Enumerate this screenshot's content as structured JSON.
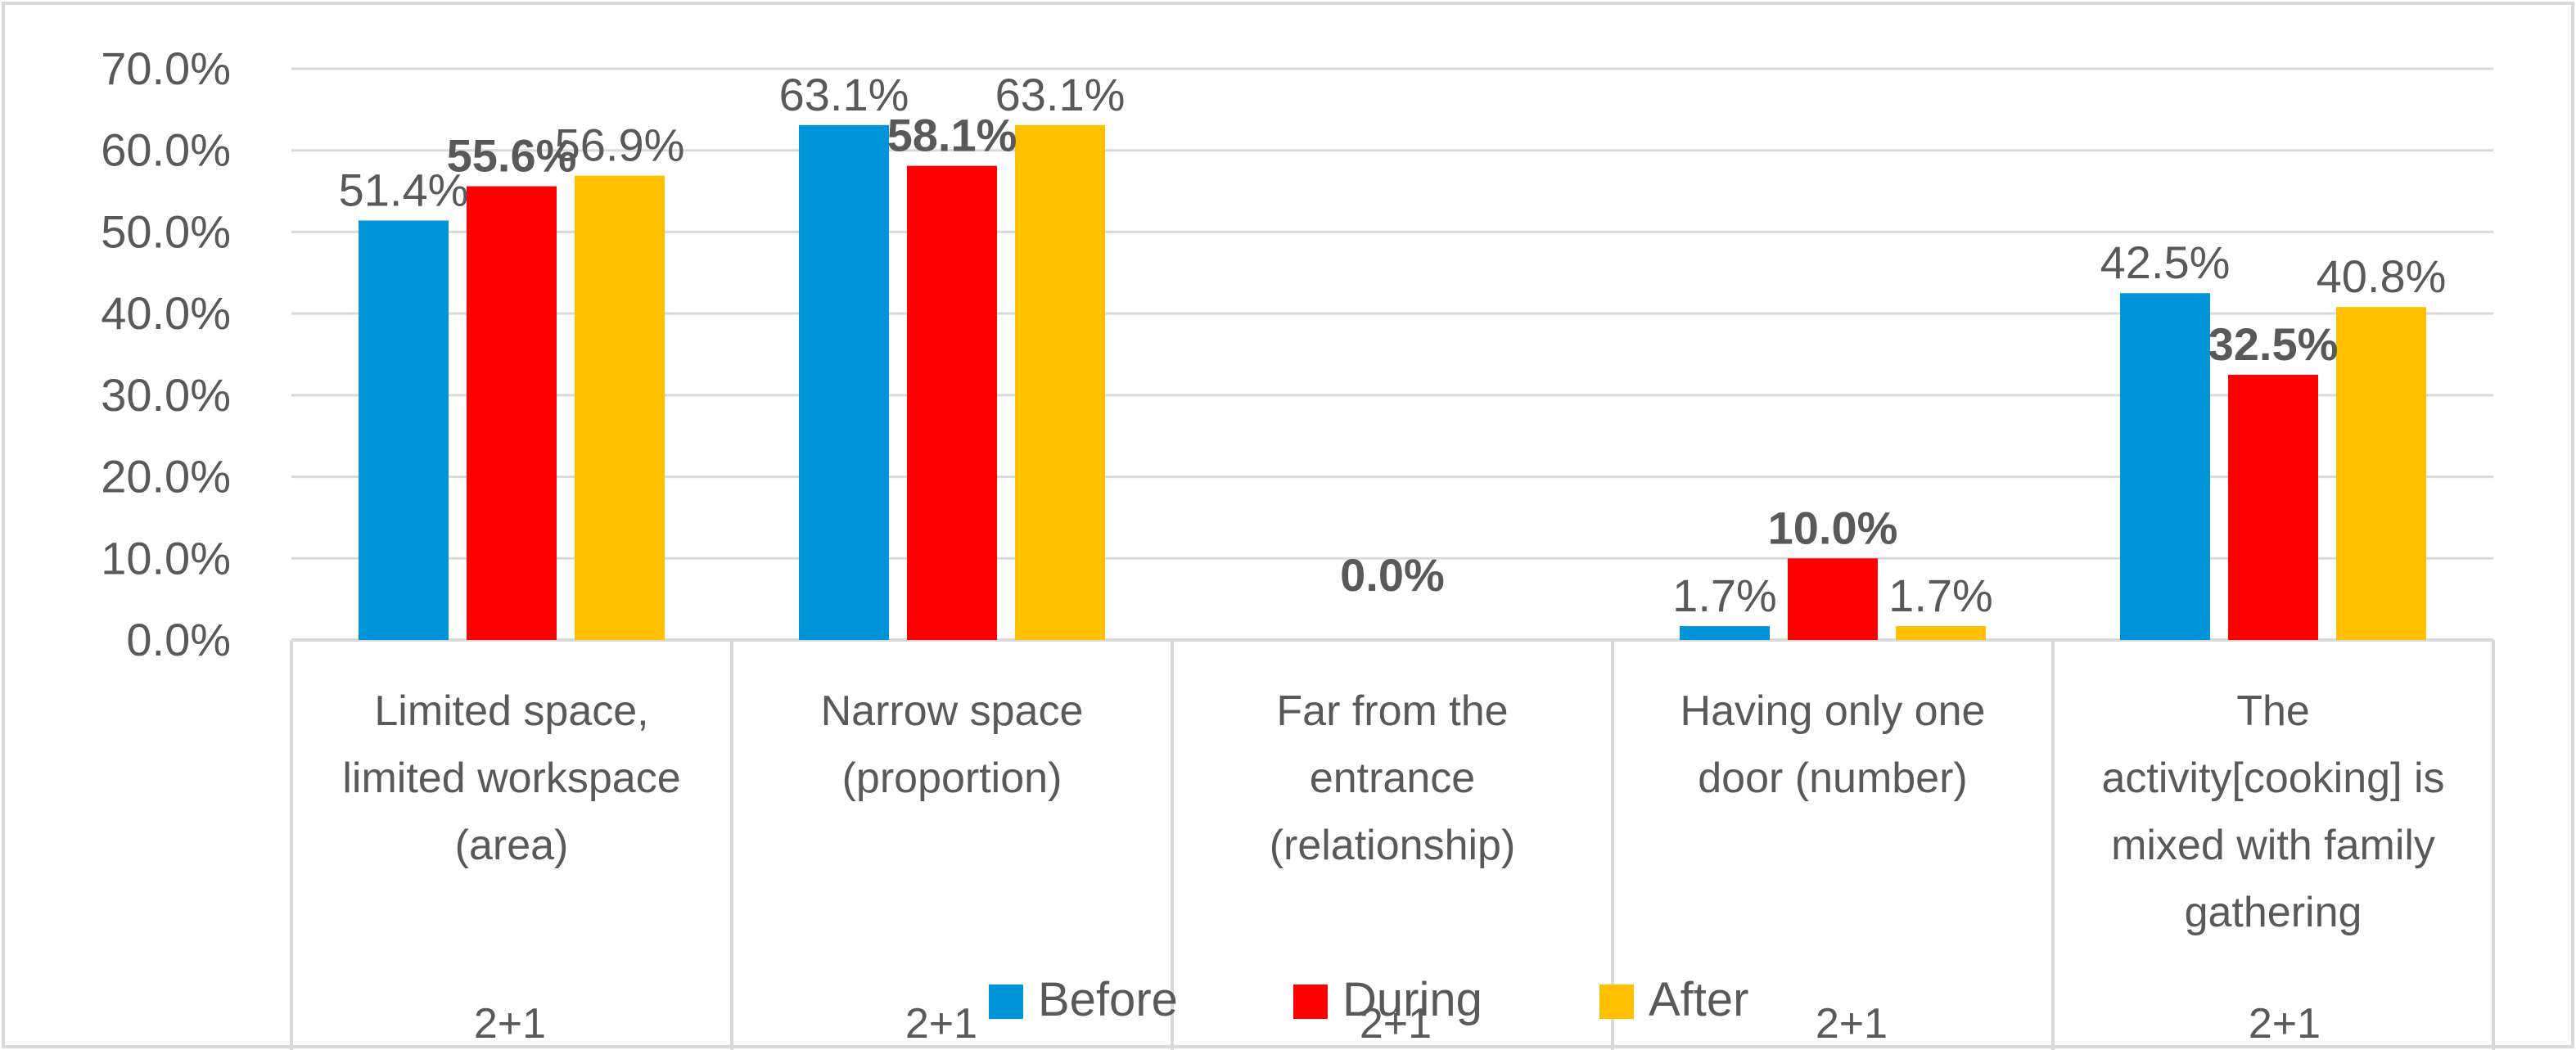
{
  "chart_data": {
    "type": "bar",
    "categories": [
      [
        "Limited space,",
        "limited workspace",
        "(area)"
      ],
      [
        "Narrow space",
        "(proportion)"
      ],
      [
        "Far from the",
        "entrance",
        "(relationship)"
      ],
      [
        "Having only one",
        "door (number)"
      ],
      [
        "The",
        "activity[cooking] is",
        "mixed with family",
        "gathering"
      ]
    ],
    "sub_labels": [
      "2+1",
      "2+1",
      "2+1",
      "2+1",
      "2+1"
    ],
    "series": [
      {
        "name": "Before",
        "color": "#0095D9",
        "values": [
          51.4,
          63.1,
          0.0,
          1.7,
          42.5
        ],
        "labels": [
          "51.4%",
          "63.1%",
          "",
          "1.7%",
          "42.5%"
        ],
        "bold": false
      },
      {
        "name": "During",
        "color": "#FF0000",
        "values": [
          55.6,
          58.1,
          0.0,
          10.0,
          32.5
        ],
        "labels": [
          "55.6%",
          "58.1%",
          "0.0%",
          "10.0%",
          "32.5%"
        ],
        "bold": true
      },
      {
        "name": "After",
        "color": "#FFC000",
        "values": [
          56.9,
          63.1,
          0.0,
          1.7,
          40.8
        ],
        "labels": [
          "56.9%",
          "63.1%",
          "",
          "1.7%",
          "40.8%"
        ],
        "bold": false
      }
    ],
    "y_ticks": [
      "0.0%",
      "10.0%",
      "20.0%",
      "30.0%",
      "40.0%",
      "50.0%",
      "60.0%",
      "70.0%"
    ],
    "ylim": [
      0,
      70
    ],
    "grid": true,
    "legend_position": "bottom"
  }
}
